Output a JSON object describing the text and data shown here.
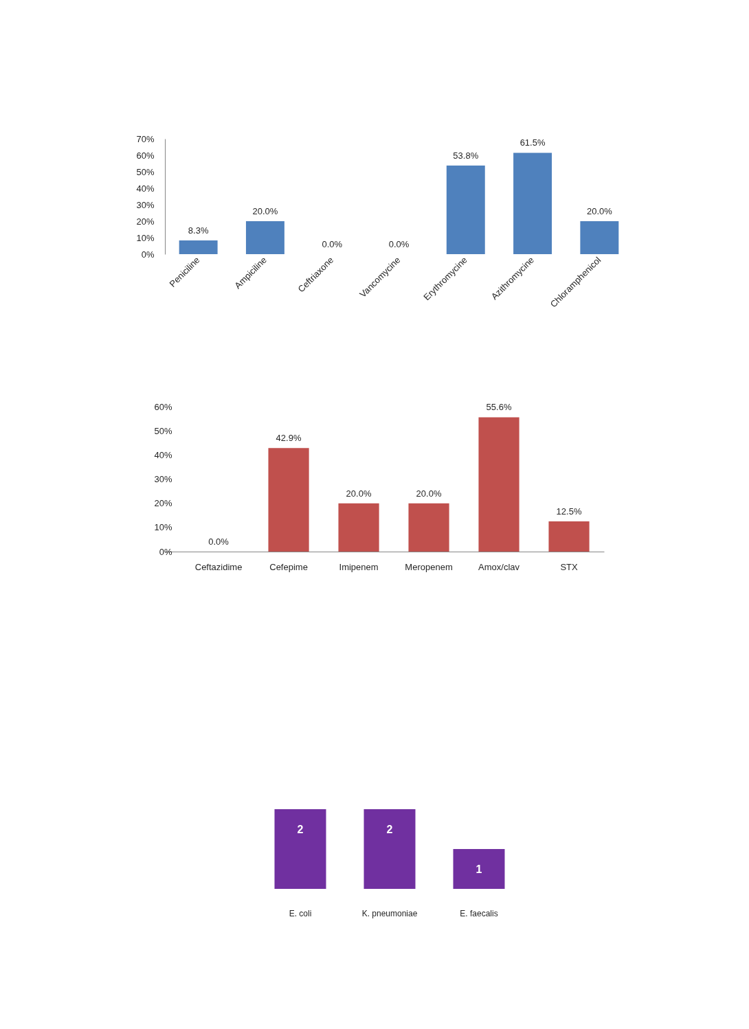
{
  "chart_data": [
    {
      "type": "bar",
      "categories": [
        "Peniciline",
        "Ampiciline",
        "Ceftriaxone",
        "Vancomycine",
        "Erythromycine",
        "Azithromycine",
        "Chloramphenicol"
      ],
      "values": [
        8.3,
        20.0,
        0.0,
        0.0,
        53.8,
        61.5,
        20.0
      ],
      "value_labels": [
        "8.3%",
        "20.0%",
        "0.0%",
        "0.0%",
        "53.8%",
        "61.5%",
        "20.0%"
      ],
      "color": "#4f81bd",
      "ylim": [
        0,
        70
      ],
      "yticks": [
        {
          "value": 0,
          "label": "0%"
        },
        {
          "value": 10,
          "label": "10%"
        },
        {
          "value": 20,
          "label": "20%"
        },
        {
          "value": 30,
          "label": "30%"
        },
        {
          "value": 40,
          "label": "40%"
        },
        {
          "value": 50,
          "label": "50%"
        },
        {
          "value": 60,
          "label": "60%"
        },
        {
          "value": 70,
          "label": "70%"
        }
      ]
    },
    {
      "type": "bar",
      "categories": [
        "Ceftazidime",
        "Cefepime",
        "Imipenem",
        "Meropenem",
        "Amox/clav",
        "STX"
      ],
      "values": [
        0.0,
        42.9,
        20.0,
        20.0,
        55.6,
        12.5
      ],
      "value_labels": [
        "0.0%",
        "42.9%",
        "20.0%",
        "20.0%",
        "55.6%",
        "12.5%"
      ],
      "color": "#c0504d",
      "ylim": [
        0,
        60
      ],
      "yticks": [
        {
          "value": 0,
          "label": "0%"
        },
        {
          "value": 10,
          "label": "10%"
        },
        {
          "value": 20,
          "label": "20%"
        },
        {
          "value": 30,
          "label": "30%"
        },
        {
          "value": 40,
          "label": "40%"
        },
        {
          "value": 50,
          "label": "50%"
        },
        {
          "value": 60,
          "label": "60%"
        }
      ]
    },
    {
      "type": "bar",
      "categories": [
        "E. coli",
        "K. pneumoniae",
        "E. faecalis"
      ],
      "values": [
        2,
        2,
        1
      ],
      "data_labels": true,
      "color": "#7030a0"
    }
  ]
}
